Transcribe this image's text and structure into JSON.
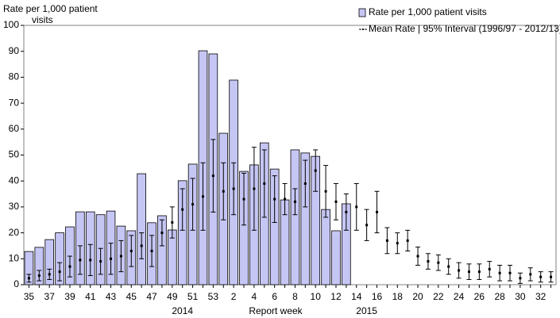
{
  "chart_data": {
    "type": "bar",
    "y_label_lines": [
      "Rate per 1,000  patient",
      "visits"
    ],
    "x_label": "Report week",
    "annotations": [
      {
        "text": "2014",
        "category_index": 15
      },
      {
        "text": "2015",
        "category_index": 33
      }
    ],
    "categories": [
      35,
      null,
      37,
      null,
      39,
      null,
      41,
      null,
      43,
      null,
      45,
      null,
      47,
      null,
      49,
      null,
      51,
      null,
      53,
      null,
      2,
      null,
      4,
      null,
      6,
      null,
      8,
      null,
      10,
      null,
      12,
      null,
      14,
      null,
      16,
      null,
      18,
      null,
      20,
      null,
      22,
      null,
      24,
      null,
      26,
      null,
      28,
      null,
      30,
      null,
      32,
      null
    ],
    "series": [
      {
        "name": "Rate per 1,000 patient visits",
        "color": "#c6c6f5",
        "values": [
          12.8,
          14.4,
          17.4,
          20,
          22.3,
          28.1,
          28.1,
          27,
          28.4,
          22.6,
          20.8,
          42.8,
          23.9,
          26.6,
          21.1,
          40.1,
          46.5,
          90.2,
          89,
          58.4,
          78.9,
          43.7,
          46.2,
          54.7,
          44.6,
          32.7,
          52,
          50.8,
          49.5,
          29,
          20.8,
          31.2,
          null,
          null,
          null,
          null,
          null,
          null,
          null,
          null,
          null,
          null,
          null,
          null,
          null,
          null,
          null,
          null,
          null,
          null,
          null,
          null
        ]
      },
      {
        "name": "Mean Rate | 95% Interval (1996/97 - 2012/13)",
        "color": "#000000",
        "values": [
          2.5,
          3.5,
          4,
          5,
          7,
          9.5,
          9.5,
          9,
          10,
          11,
          13,
          15,
          13,
          20,
          24,
          29,
          31,
          34,
          42,
          36,
          37,
          33,
          37,
          39,
          33,
          33,
          32,
          39,
          44,
          36,
          32,
          28,
          30,
          23,
          28,
          17,
          16,
          17,
          11,
          9,
          8.5,
          7,
          5.5,
          5,
          5,
          6,
          4.5,
          4.5,
          2.5,
          4,
          3,
          3
        ],
        "errors": [
          1.5,
          2,
          2,
          3.5,
          4,
          5.5,
          6,
          5,
          6,
          6,
          6,
          5,
          6,
          5,
          6,
          8,
          10,
          13,
          14,
          11,
          10,
          10,
          16,
          13,
          9,
          6,
          5,
          9,
          8,
          10,
          7,
          7,
          9,
          6,
          8,
          5,
          4,
          4,
          3.5,
          3,
          3,
          3,
          3,
          3,
          3,
          3,
          3,
          3,
          2,
          2.5,
          2,
          2
        ]
      }
    ],
    "ylim": [
      0,
      100
    ],
    "yticks": [
      0,
      10,
      20,
      30,
      40,
      50,
      60,
      70,
      80,
      90,
      100
    ],
    "grid": false,
    "legend": "top-right"
  }
}
